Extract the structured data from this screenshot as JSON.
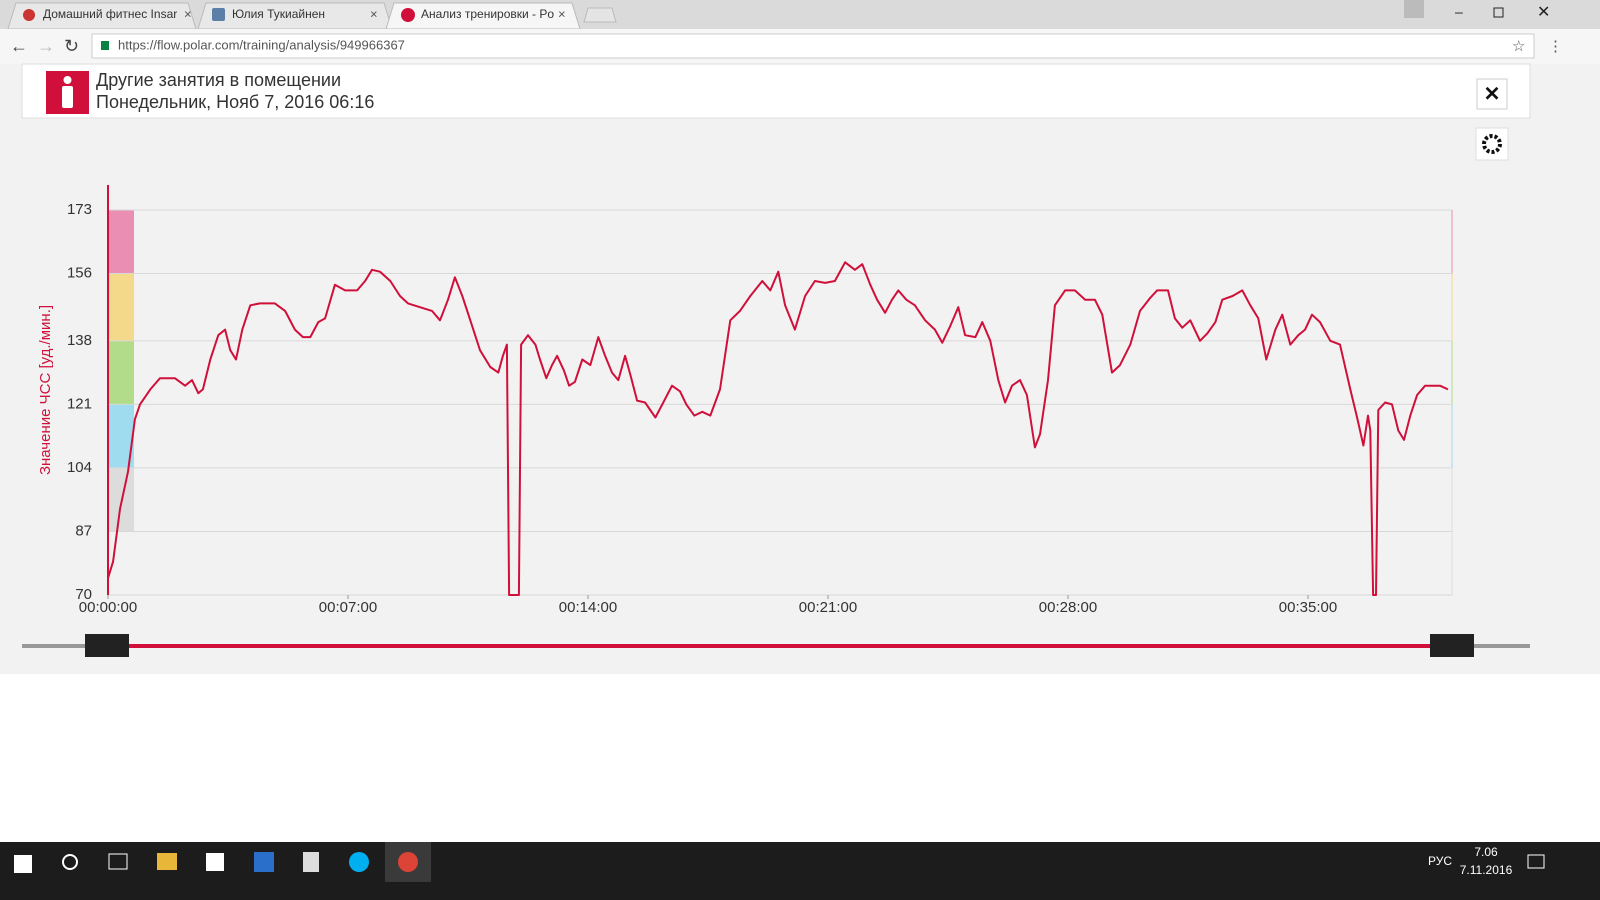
{
  "browser": {
    "tabs": [
      "Домашний фитнес Insar",
      "Юлия Тукиайнен",
      "Анализ тренировки - Po"
    ],
    "url": "https://flow.polar.com/training/analysis/949966367"
  },
  "header": {
    "title": "Другие занятия в помещении",
    "subtitle": "Понедельник, Нояб 7, 2016 06:16"
  },
  "chart_data": {
    "type": "line",
    "y_label": "Значение ЧСС [уд./мин.]",
    "color": "#d0103a",
    "xlim": [
      0,
      2352
    ],
    "ylim": [
      70,
      173
    ],
    "xticks": [
      {
        "value": 0,
        "label": "00:00:00"
      },
      {
        "value": 420,
        "label": "00:07:00"
      },
      {
        "value": 840,
        "label": "00:14:00"
      },
      {
        "value": 1260,
        "label": "00:21:00"
      },
      {
        "value": 1680,
        "label": "00:28:00"
      },
      {
        "value": 2100,
        "label": "00:35:00"
      }
    ],
    "yticks": [
      70,
      87,
      104,
      121,
      138,
      156,
      173
    ],
    "grid": true,
    "zones": [
      {
        "from": 87,
        "to": 104,
        "color": "#dcdcdc"
      },
      {
        "from": 104,
        "to": 121,
        "color": "#9fdcef"
      },
      {
        "from": 121,
        "to": 138,
        "color": "#b2dc8a"
      },
      {
        "from": 138,
        "to": 156,
        "color": "#f4d98a"
      },
      {
        "from": 156,
        "to": 173,
        "color": "#ea8fb3"
      }
    ],
    "x": [
      0,
      9,
      21,
      35,
      47,
      56,
      74,
      91,
      117,
      135,
      147,
      158,
      166,
      179,
      193,
      205,
      214,
      224,
      235,
      249,
      266,
      292,
      310,
      327,
      341,
      354,
      368,
      380,
      397,
      415,
      436,
      450,
      462,
      476,
      494,
      511,
      525,
      546,
      567,
      581,
      595,
      607,
      620,
      634,
      651,
      669,
      683,
      691,
      698,
      702,
      719,
      723,
      735,
      748,
      756,
      767,
      777,
      786,
      798,
      807,
      817,
      830,
      844,
      858,
      870,
      882,
      893,
      905,
      914,
      926,
      940,
      958,
      970,
      987,
      1001,
      1012,
      1026,
      1040,
      1054,
      1071,
      1089,
      1106,
      1124,
      1145,
      1159,
      1173,
      1185,
      1202,
      1220,
      1237,
      1255,
      1272,
      1290,
      1307,
      1320,
      1334,
      1346,
      1360,
      1372,
      1383,
      1397,
      1412,
      1430,
      1447,
      1460,
      1474,
      1488,
      1500,
      1518,
      1530,
      1544,
      1558,
      1570,
      1582,
      1596,
      1608,
      1622,
      1631,
      1645,
      1657,
      1675,
      1692,
      1710,
      1727,
      1740,
      1757,
      1771,
      1789,
      1806,
      1824,
      1836,
      1855,
      1867,
      1880,
      1894,
      1911,
      1924,
      1938,
      1950,
      1968,
      1985,
      1999,
      2013,
      2027,
      2043,
      2055,
      2069,
      2083,
      2095,
      2107,
      2121,
      2139,
      2156,
      2174,
      2186,
      2197,
      2205,
      2209,
      2214,
      2219,
      2223,
      2235,
      2247,
      2258,
      2268,
      2279,
      2291,
      2305,
      2331,
      2345
    ],
    "values": [
      74.5,
      79,
      93,
      103,
      117,
      121,
      125,
      128,
      128,
      126,
      127.5,
      124,
      125,
      133,
      139.5,
      141,
      135.5,
      133,
      141,
      147.5,
      148,
      148,
      146,
      141,
      139,
      139,
      143,
      144,
      153,
      151.5,
      151.5,
      154,
      157,
      156.5,
      154,
      150,
      148,
      147,
      146,
      143.5,
      149,
      155,
      150,
      143.5,
      135.5,
      131,
      129.5,
      134,
      137,
      70,
      70,
      137,
      139.5,
      137,
      133,
      128,
      131.5,
      134,
      130,
      126,
      127,
      133,
      131.5,
      139,
      134,
      129.5,
      127.5,
      134,
      129,
      122,
      121.5,
      117.5,
      121,
      126,
      124.5,
      121,
      118,
      119,
      118,
      125,
      143.5,
      146,
      150,
      154,
      151.5,
      156.5,
      147.5,
      141,
      150,
      154,
      153.5,
      154,
      159,
      157,
      158.5,
      153,
      149,
      145.5,
      149,
      151.5,
      149,
      147.5,
      143.5,
      141,
      137.5,
      142,
      147,
      139.5,
      139,
      143,
      138,
      127.5,
      121.5,
      126,
      127.5,
      123.5,
      109.5,
      113,
      127.5,
      147.5,
      151.5,
      151.5,
      149,
      149,
      145,
      129.5,
      131.5,
      137,
      146,
      149.5,
      151.5,
      151.5,
      144,
      141.5,
      143.5,
      138,
      140,
      143,
      149,
      150,
      151.5,
      147.5,
      144,
      133,
      141,
      145,
      137,
      139.5,
      141,
      145,
      143,
      138,
      137,
      125,
      117.5,
      110,
      118,
      114,
      70,
      70,
      119.5,
      121.5,
      121,
      114,
      111.5,
      118,
      123.5,
      126,
      126,
      125
    ]
  },
  "taskbar": {
    "language": "РУС",
    "time": "7.06",
    "date": "7.11.2016"
  }
}
